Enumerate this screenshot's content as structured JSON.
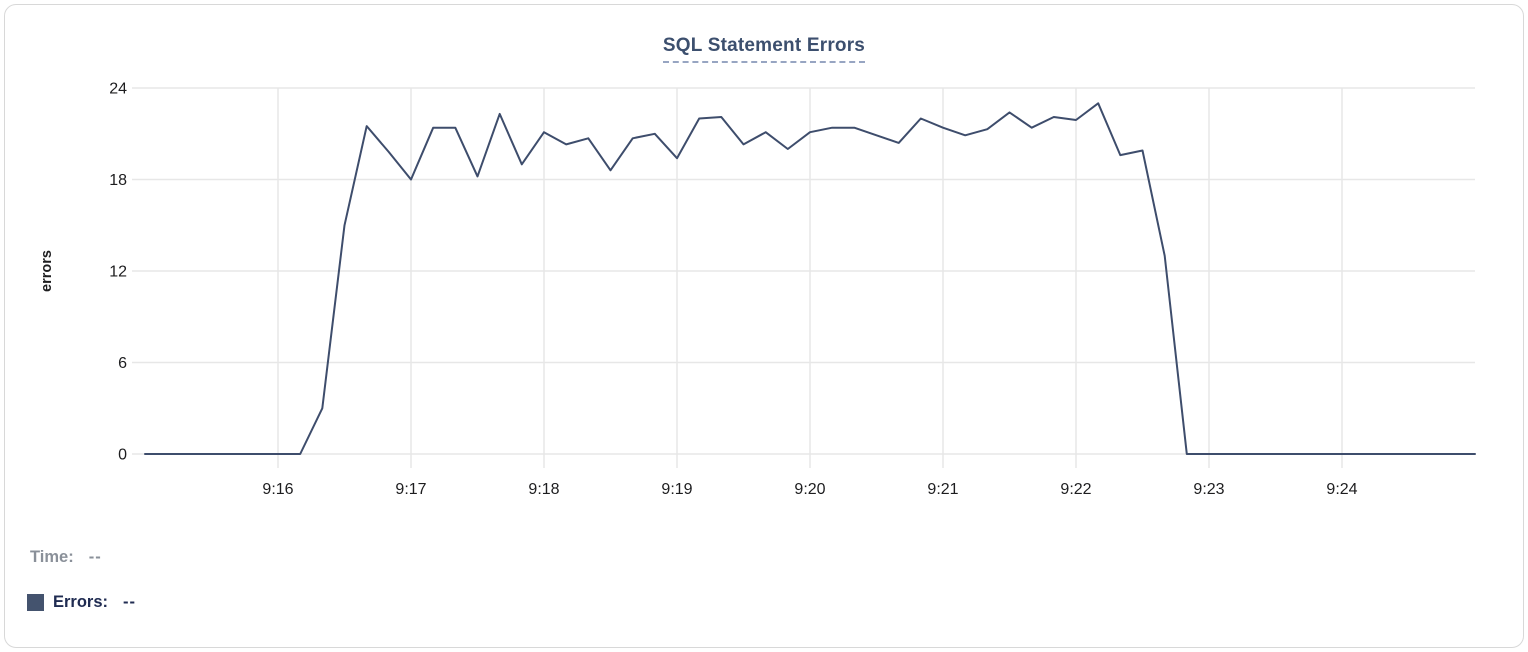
{
  "chart": {
    "title": "SQL Statement Errors",
    "y_axis_label": "errors"
  },
  "chart_data": {
    "type": "line",
    "title": "SQL Statement Errors",
    "xlabel": "",
    "ylabel": "errors",
    "ylim": [
      0,
      24
    ],
    "y_ticks": [
      0,
      6,
      12,
      18,
      24
    ],
    "x_domain": [
      "9:15:00",
      "9:25:00"
    ],
    "x_tick_labels": [
      "9:16",
      "9:17",
      "9:18",
      "9:19",
      "9:20",
      "9:21",
      "9:22",
      "9:23",
      "9:24"
    ],
    "grid": true,
    "legend_position": "below-left",
    "series": [
      {
        "name": "Errors",
        "color": "#3e4d6c",
        "x": [
          "9:15:00",
          "9:15:10",
          "9:15:20",
          "9:15:30",
          "9:15:40",
          "9:15:50",
          "9:16:00",
          "9:16:10",
          "9:16:20",
          "9:16:30",
          "9:16:40",
          "9:16:50",
          "9:17:00",
          "9:17:10",
          "9:17:20",
          "9:17:30",
          "9:17:40",
          "9:17:50",
          "9:18:00",
          "9:18:10",
          "9:18:20",
          "9:18:30",
          "9:18:40",
          "9:18:50",
          "9:19:00",
          "9:19:10",
          "9:19:20",
          "9:19:30",
          "9:19:40",
          "9:19:50",
          "9:20:00",
          "9:20:10",
          "9:20:20",
          "9:20:30",
          "9:20:40",
          "9:20:50",
          "9:21:00",
          "9:21:10",
          "9:21:20",
          "9:21:30",
          "9:21:40",
          "9:21:50",
          "9:22:00",
          "9:22:10",
          "9:22:20",
          "9:22:30",
          "9:22:40",
          "9:22:50",
          "9:23:00",
          "9:23:10",
          "9:23:20",
          "9:23:30",
          "9:23:40",
          "9:23:50",
          "9:24:00",
          "9:24:10",
          "9:24:20",
          "9:24:30",
          "9:24:40",
          "9:24:50",
          "9:25:00"
        ],
        "values": [
          0,
          0,
          0,
          0,
          0,
          0,
          0,
          0,
          3,
          15,
          21.5,
          19.8,
          18,
          21.4,
          21.4,
          18.2,
          22.3,
          19,
          21.1,
          20.3,
          20.7,
          18.6,
          20.7,
          21,
          19.4,
          22,
          22.1,
          20.3,
          21.1,
          20,
          21.1,
          21.4,
          21.4,
          20.9,
          20.4,
          22,
          21.4,
          20.9,
          21.3,
          22.4,
          21.4,
          22.1,
          21.9,
          23,
          19.6,
          19.9,
          13,
          0,
          0,
          0,
          0,
          0,
          0,
          0,
          0,
          0,
          0,
          0,
          0,
          0,
          0
        ]
      }
    ]
  },
  "readout": {
    "time_label": "Time:",
    "time_value": "--",
    "errors_label": "Errors:",
    "errors_value": "--",
    "swatch_color": "#44536e"
  },
  "colors": {
    "title": "#3c4f6e",
    "title_underline": "#97a5c2",
    "grid": "#e7e7e7",
    "axis_text": "#1d1d1f",
    "line": "#3e4d6c",
    "card_border": "#d8d8d8",
    "legend_gray": "#8a9099",
    "legend_navy": "#202c52"
  }
}
